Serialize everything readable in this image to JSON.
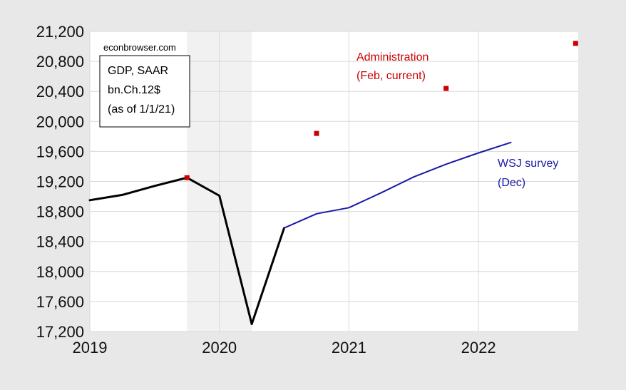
{
  "chart_data": {
    "type": "line",
    "source_label": "econbrowser.com",
    "info_box_lines": [
      "GDP, SAAR",
      "bn.Ch.12$",
      "(as of 1/1/21)"
    ],
    "xlim": [
      2019.0,
      2022.77
    ],
    "ylim": [
      17200,
      21200
    ],
    "y_ticks": [
      17200,
      17600,
      18000,
      18400,
      18800,
      19200,
      19600,
      20000,
      20400,
      20800,
      21200
    ],
    "y_tick_labels": [
      "17,200",
      "17,600",
      "18,000",
      "18,400",
      "18,800",
      "19,200",
      "19,600",
      "20,000",
      "20,400",
      "20,800",
      "21,200"
    ],
    "x_ticks": [
      2019,
      2020,
      2021,
      2022
    ],
    "x_tick_labels": [
      "2019",
      "2020",
      "2021",
      "2022"
    ],
    "grid": true,
    "recession_band": [
      2019.75,
      2020.25
    ],
    "series": [
      {
        "name": "",
        "color": "#000000",
        "style": "line",
        "points": [
          [
            2019.0,
            18950
          ],
          [
            2019.25,
            19020
          ],
          [
            2019.5,
            19140
          ],
          [
            2019.75,
            19250
          ],
          [
            2020.0,
            19010
          ],
          [
            2020.25,
            17300
          ],
          [
            2020.5,
            18580
          ]
        ]
      },
      {
        "name": "WSJ survey",
        "name_line2": "(Dec)",
        "color": "#1a1aa8",
        "style": "line",
        "points": [
          [
            2020.5,
            18580
          ],
          [
            2020.75,
            18770
          ],
          [
            2021.0,
            18850
          ],
          [
            2021.25,
            19050
          ],
          [
            2021.5,
            19260
          ],
          [
            2021.75,
            19430
          ],
          [
            2022.0,
            19580
          ],
          [
            2022.25,
            19720
          ]
        ]
      },
      {
        "name": "Administration",
        "name_line2": "(Feb, current)",
        "color": "#cc0000",
        "style": "markers",
        "points": [
          [
            2019.75,
            19250
          ],
          [
            2020.75,
            19840
          ],
          [
            2021.75,
            20440
          ],
          [
            2022.75,
            21040
          ]
        ]
      }
    ]
  }
}
